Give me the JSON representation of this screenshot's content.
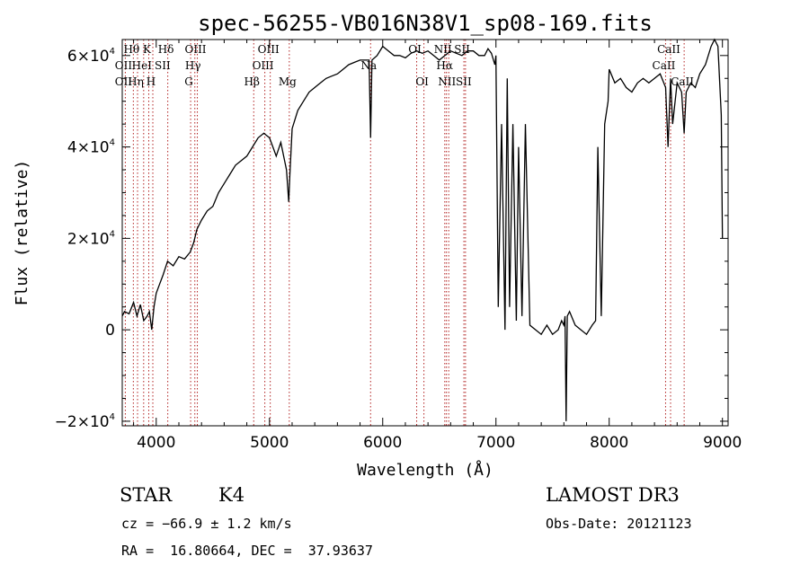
{
  "chart_data": {
    "type": "line",
    "title": "spec-56255-VB016N38V1_sp08-169.fits",
    "xlabel": "Wavelength (Å)",
    "ylabel": "Flux (relative)",
    "xlim": [
      3700,
      9050
    ],
    "ylim": [
      -21000,
      63500
    ],
    "x_ticks": [
      4000,
      5000,
      6000,
      7000,
      8000,
      9000
    ],
    "y_ticks": [
      {
        "value": -20000,
        "mant": "−2×10",
        "exp": "4"
      },
      {
        "value": 0,
        "mant": "0",
        "exp": ""
      },
      {
        "value": 20000,
        "mant": "2×10",
        "exp": "4"
      },
      {
        "value": 40000,
        "mant": "4×10",
        "exp": "4"
      },
      {
        "value": 60000,
        "mant": "6×10",
        "exp": "4"
      }
    ],
    "line_markers": [
      3727,
      3798,
      3835,
      3889,
      3934,
      3970,
      4102,
      4304,
      4341,
      4363,
      4861,
      4959,
      5007,
      5175,
      5893,
      6300,
      6364,
      6548,
      6563,
      6583,
      6717,
      6731,
      8498,
      8542,
      8662
    ],
    "line_labels": [
      {
        "text": "Hθ",
        "x": 3798,
        "row": 1
      },
      {
        "text": "K",
        "x": 3934,
        "row": 1
      },
      {
        "text": "Hδ",
        "x": 4102,
        "row": 1
      },
      {
        "text": "OIII",
        "x": 4363,
        "row": 1
      },
      {
        "text": "OIII",
        "x": 5007,
        "row": 1
      },
      {
        "text": "OI",
        "x": 6300,
        "row": 1
      },
      {
        "text": "NII",
        "x": 6548,
        "row": 1
      },
      {
        "text": "SII",
        "x": 6717,
        "row": 1
      },
      {
        "text": "CaII",
        "x": 8542,
        "row": 1
      },
      {
        "text": "OII",
        "x": 3727,
        "row": 2
      },
      {
        "text": "HeI",
        "x": 3889,
        "row": 2
      },
      {
        "text": "SII",
        "x": 4072,
        "row": 2
      },
      {
        "text": "Hγ",
        "x": 4341,
        "row": 2
      },
      {
        "text": "OIII",
        "x": 4959,
        "row": 2
      },
      {
        "text": "Na",
        "x": 5893,
        "row": 2
      },
      {
        "text": "Hα",
        "x": 6563,
        "row": 2
      },
      {
        "text": "CaII",
        "x": 8498,
        "row": 2
      },
      {
        "text": "OII",
        "x": 3727,
        "row": 3
      },
      {
        "text": "Hη",
        "x": 3835,
        "row": 3
      },
      {
        "text": "H",
        "x": 3970,
        "row": 3
      },
      {
        "text": "G",
        "x": 4304,
        "row": 3
      },
      {
        "text": "Hβ",
        "x": 4861,
        "row": 3
      },
      {
        "text": "Mg",
        "x": 5175,
        "row": 3
      },
      {
        "text": "OI",
        "x": 6364,
        "row": 3
      },
      {
        "text": "NII",
        "x": 6583,
        "row": 3
      },
      {
        "text": "SII",
        "x": 6731,
        "row": 3
      },
      {
        "text": "CaII",
        "x": 8662,
        "row": 3
      }
    ],
    "series": [
      {
        "x": [
          3700,
          3720,
          3760,
          3800,
          3830,
          3860,
          3890,
          3920,
          3940,
          3960,
          3980,
          4000,
          4030,
          4060,
          4100,
          4150,
          4200,
          4250,
          4300,
          4330,
          4360,
          4400,
          4450,
          4500,
          4550,
          4600,
          4650,
          4700,
          4750,
          4800,
          4850,
          4900,
          4950,
          5000,
          5030,
          5060,
          5100,
          5150,
          5170,
          5180,
          5200,
          5250,
          5300,
          5350,
          5400,
          5450,
          5500,
          5550,
          5600,
          5650,
          5700,
          5750,
          5800,
          5850,
          5880,
          5893,
          5905,
          5950,
          6000,
          6050,
          6100,
          6150,
          6200,
          6250,
          6300,
          6350,
          6400,
          6450,
          6500,
          6550,
          6600,
          6650,
          6700,
          6750,
          6800,
          6850,
          6900,
          6930,
          6960,
          6990,
          7000,
          7020,
          7050,
          7080,
          7100,
          7120,
          7150,
          7180,
          7200,
          7230,
          7260,
          7300,
          7350,
          7400,
          7450,
          7500,
          7550,
          7580,
          7600,
          7610,
          7620,
          7630,
          7650,
          7700,
          7750,
          7800,
          7850,
          7880,
          7900,
          7930,
          7960,
          7990,
          8000,
          8050,
          8100,
          8150,
          8200,
          8250,
          8300,
          8350,
          8400,
          8450,
          8498,
          8520,
          8542,
          8560,
          8600,
          8640,
          8662,
          8680,
          8720,
          8760,
          8800,
          8850,
          8900,
          8930,
          8960,
          8990,
          9000
        ],
        "y": [
          3000,
          4000,
          3500,
          6000,
          3000,
          5500,
          2000,
          3000,
          4000,
          0,
          5000,
          8000,
          10000,
          12000,
          15000,
          14000,
          16000,
          15500,
          17000,
          19000,
          22000,
          24000,
          26000,
          27000,
          30000,
          32000,
          34000,
          36000,
          37000,
          38000,
          40000,
          42000,
          43000,
          42000,
          40000,
          38000,
          41000,
          35000,
          28000,
          34000,
          44000,
          48000,
          50000,
          52000,
          53000,
          54000,
          55000,
          55500,
          56000,
          57000,
          58000,
          58500,
          59000,
          59000,
          59000,
          42000,
          59000,
          60000,
          62000,
          61000,
          60000,
          60000,
          59500,
          60500,
          61000,
          60500,
          61000,
          60000,
          59000,
          60000,
          61000,
          60500,
          60000,
          61000,
          61000,
          60000,
          60000,
          61500,
          60500,
          58000,
          60000,
          5000,
          45000,
          0,
          55000,
          5000,
          45000,
          2000,
          40000,
          3000,
          45000,
          1000,
          0,
          -1000,
          1000,
          -1000,
          0,
          2000,
          1000,
          3000,
          -20000,
          3000,
          4000,
          1000,
          0,
          -1000,
          1000,
          2000,
          40000,
          3000,
          45000,
          50000,
          57000,
          54000,
          55000,
          53000,
          52000,
          54000,
          55000,
          54000,
          55000,
          56000,
          53000,
          40000,
          55000,
          45000,
          54000,
          52000,
          43000,
          52000,
          54000,
          53000,
          56000,
          58000,
          62000,
          63500,
          62000,
          47000,
          20000
        ]
      }
    ]
  },
  "info": {
    "class_label": "STAR",
    "subclass": "K4",
    "survey": "LAMOST DR3",
    "cz": "cz = −66.9 ± 1.2 km/s",
    "obs_date": "Obs-Date: 20121123",
    "coords": "RA =  16.80664, DEC =  37.93637"
  }
}
